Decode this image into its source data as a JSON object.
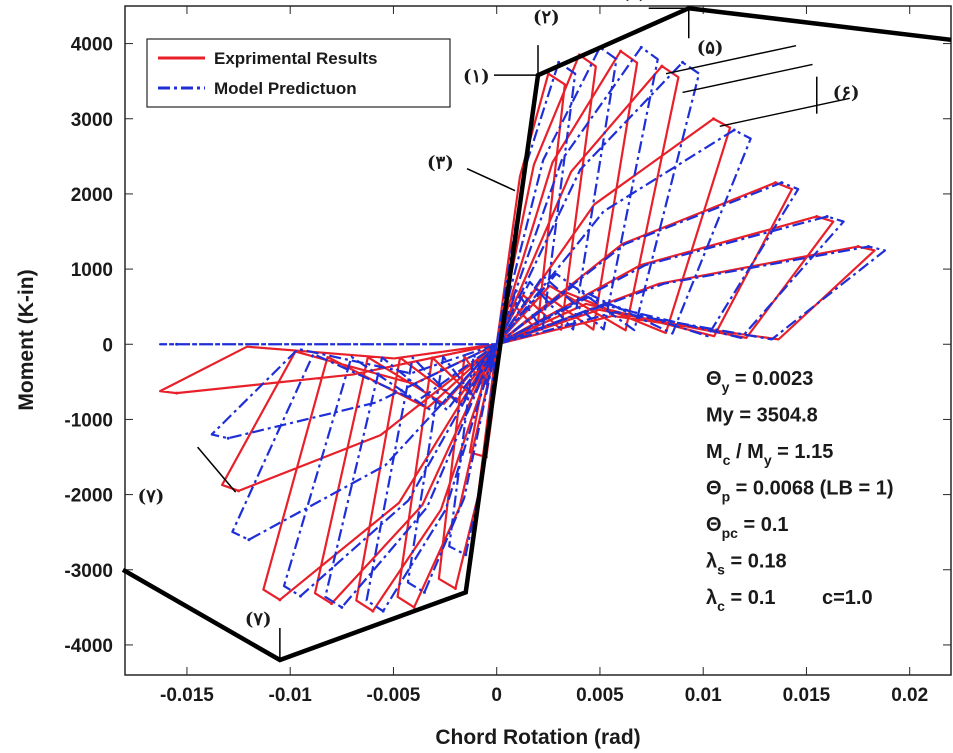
{
  "chart_data": {
    "type": "line",
    "xlabel": "Chord Rotation (rad)",
    "ylabel": "Moment (K-in)",
    "xlim": [
      -0.018,
      0.022
    ],
    "ylim": [
      -4400,
      4500
    ],
    "x_ticks": [
      -0.015,
      -0.01,
      -0.005,
      0,
      0.005,
      0.01,
      0.015,
      0.02
    ],
    "x_tick_labels": [
      "-0.015",
      "-0.01",
      "-0.005",
      "0",
      "0.005",
      "0.01",
      "0.015",
      "0.02"
    ],
    "y_ticks": [
      -4000,
      -3000,
      -2000,
      -1000,
      0,
      1000,
      2000,
      3000,
      4000
    ],
    "y_tick_labels": [
      "-4000",
      "-3000",
      "-2000",
      "-1000",
      "0",
      "1000",
      "2000",
      "3000",
      "4000"
    ],
    "grid": false,
    "legend_position": "top-left",
    "colors": {
      "experimental": "#e8202a",
      "model": "#1f2fd8",
      "backbone": "#000000"
    },
    "series": [
      {
        "name": "Exprimental Results",
        "style": "solid",
        "peaks_positive": [
          [
            0.0025,
            3600
          ],
          [
            0.004,
            3850
          ],
          [
            0.006,
            3900
          ],
          [
            0.008,
            3700
          ],
          [
            0.0105,
            3000
          ],
          [
            0.0135,
            2150
          ],
          [
            0.0155,
            1700
          ],
          [
            0.0175,
            1300
          ]
        ],
        "peaks_negative": [
          [
            -0.0005,
            -1500
          ],
          [
            -0.002,
            -3250
          ],
          [
            -0.004,
            -3500
          ],
          [
            -0.006,
            -3550
          ],
          [
            -0.008,
            -3450
          ],
          [
            -0.0105,
            -3400
          ],
          [
            -0.0125,
            -1950
          ],
          [
            -0.0155,
            -650
          ]
        ]
      },
      {
        "name": "Model Predictuon",
        "style": "dash-dot",
        "peaks_positive": [
          [
            0.003,
            3750
          ],
          [
            0.005,
            3950
          ],
          [
            0.007,
            3950
          ],
          [
            0.009,
            3750
          ],
          [
            0.0115,
            2850
          ],
          [
            0.0138,
            2150
          ],
          [
            0.016,
            1700
          ],
          [
            0.018,
            1300
          ]
        ],
        "peaks_negative": [
          [
            -0.0015,
            -2800
          ],
          [
            -0.0035,
            -3300
          ],
          [
            -0.0055,
            -3550
          ],
          [
            -0.0075,
            -3500
          ],
          [
            -0.0095,
            -3350
          ],
          [
            -0.012,
            -2600
          ],
          [
            -0.013,
            -1250
          ],
          [
            -0.0155,
            0
          ]
        ]
      },
      {
        "name": "backbone",
        "style": "solid-thick",
        "points": [
          [
            -0.0181,
            -3000
          ],
          [
            -0.0105,
            -4200
          ],
          [
            -0.0015,
            -3300
          ],
          [
            0.002,
            3580
          ],
          [
            0.0093,
            4470
          ],
          [
            0.022,
            4050
          ]
        ]
      }
    ],
    "annotations": [
      {
        "label": "(۱)",
        "x": 0.002,
        "y": 3580
      },
      {
        "label": "(۲)",
        "x": 0.002,
        "y": 3580
      },
      {
        "label": "(۳)",
        "x": 0.0005,
        "y": 2150
      },
      {
        "label": "(۴)",
        "x": 0.0093,
        "y": 4470
      },
      {
        "label": "(۵)",
        "x": 0.0093,
        "y": 4470
      },
      {
        "label": "(۶)",
        "x": 0.0155,
        "y": 3400
      },
      {
        "label": "(۷)",
        "x": -0.0105,
        "y": -4200
      },
      {
        "label": "(۷)",
        "x": -0.014,
        "y": -1900
      }
    ],
    "parameters": [
      {
        "base": "Θ",
        "sub": "y",
        "rest": " = 0.0023"
      },
      {
        "base": "My = 3504.8",
        "sub": "",
        "rest": ""
      },
      {
        "base": "M",
        "sub": "c",
        "rest": " / M",
        "sub2": "y",
        "rest2": " = 1.15"
      },
      {
        "base": "Θ",
        "sub": "p",
        "rest": " = 0.0068 (LB = 1)"
      },
      {
        "base": "Θ",
        "sub": "pc",
        "rest": " = 0.1"
      },
      {
        "base": "λ",
        "sub": "s",
        "rest": " = 0.18"
      },
      {
        "base": "λ",
        "sub": "c",
        "rest": " = 0.1"
      }
    ],
    "c_note": "c=1.0"
  }
}
